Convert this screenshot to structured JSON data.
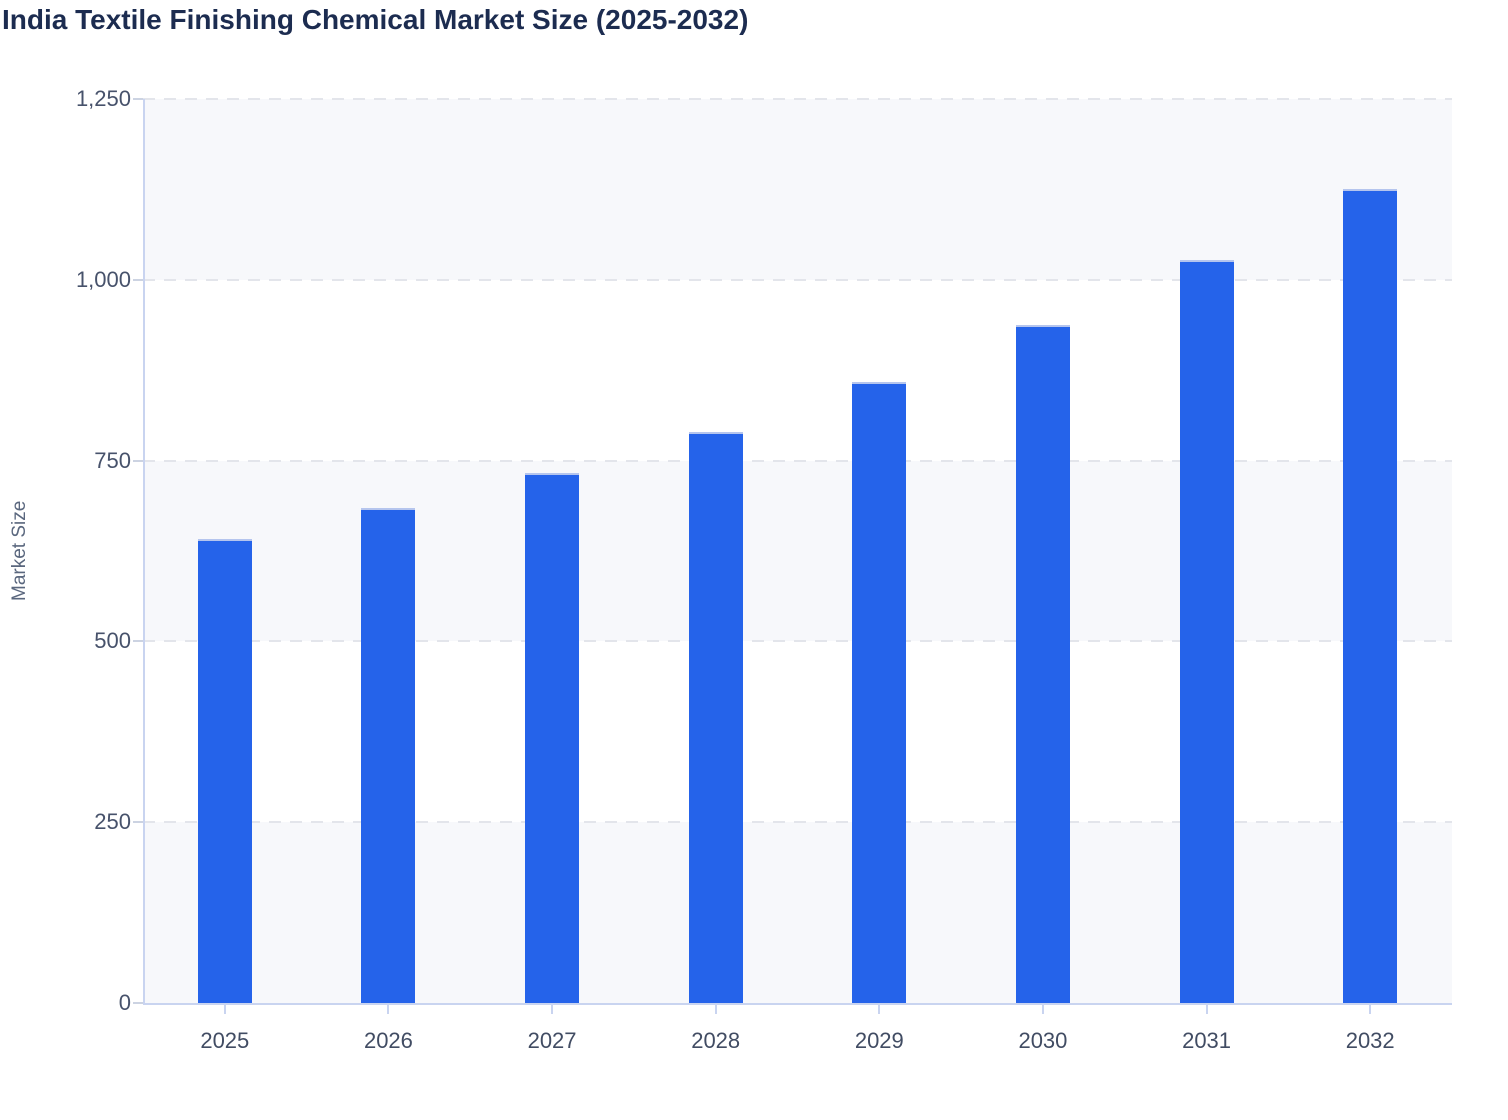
{
  "title": "India Textile Finishing Chemical Market Size (2025-2032)",
  "chart_data": {
    "type": "bar",
    "title": "India Textile Finishing Chemical Market Size (2025-2032)",
    "xlabel": "",
    "ylabel": "Market Size",
    "categories": [
      "2025",
      "2026",
      "2027",
      "2028",
      "2029",
      "2030",
      "2031",
      "2032"
    ],
    "values": [
      642,
      685,
      733,
      790,
      858,
      938,
      1028,
      1126
    ],
    "ylim": [
      0,
      1250
    ],
    "yticks": [
      {
        "value": 0,
        "label": "0"
      },
      {
        "value": 250,
        "label": "250"
      },
      {
        "value": 500,
        "label": "500"
      },
      {
        "value": 750,
        "label": "750"
      },
      {
        "value": 1000,
        "label": "1,000"
      },
      {
        "value": 1250,
        "label": "1,250"
      }
    ],
    "grid": "horizontal-dashed",
    "bands": [
      [
        0,
        250
      ],
      [
        500,
        750
      ],
      [
        1000,
        1250
      ]
    ],
    "legend_position": "none",
    "colors": {
      "bar": "#2563ea",
      "bar_top_edge": "#b5c5ee",
      "band": "#f7f8fb",
      "gridline": "#e3e5eb",
      "axis_line": "#c9d4f0",
      "title": "#1c2c50",
      "tick_label": "#47526b",
      "axis_title": "#5a677e"
    }
  }
}
